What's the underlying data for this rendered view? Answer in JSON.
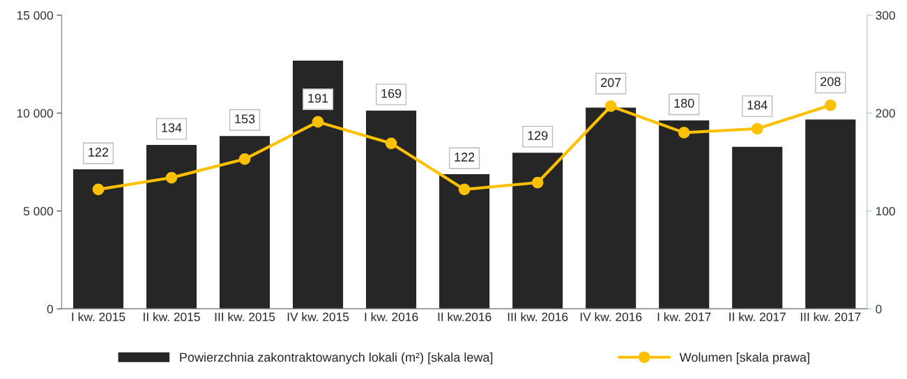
{
  "chart_data": {
    "type": "bar",
    "categories": [
      "I kw. 2015",
      "II kw. 2015",
      "III kw. 2015",
      "IV kw. 2015",
      "I kw. 2016",
      "II kw.2016",
      "III kw. 2016",
      "IV kw. 2016",
      "I kw. 2017",
      "II kw. 2017",
      "III kw. 2017"
    ],
    "series": [
      {
        "name": "Powierzchnia zakontraktowanych lokali (m²) [skala lewa]",
        "color": "#262626",
        "values": [
          7150,
          8400,
          8850,
          12700,
          10150,
          6900,
          8000,
          10300,
          9650,
          8300,
          9700
        ]
      },
      {
        "name": "Wolumen [skala prawa]",
        "type": "line",
        "axis": "y2",
        "color": "#ffc000",
        "marker": "circle",
        "data_labels": true,
        "values": [
          122,
          134,
          153,
          191,
          169,
          122,
          129,
          207,
          180,
          184,
          208
        ]
      }
    ],
    "ylim": [
      0,
      15000
    ],
    "yticks": [
      {
        "value": 0,
        "label": "0"
      },
      {
        "value": 5000,
        "label": "5 000"
      },
      {
        "value": 10000,
        "label": "10 000"
      },
      {
        "value": 15000,
        "label": "15 000"
      }
    ],
    "y2lim": [
      0,
      300
    ],
    "y2ticks": [
      0,
      100,
      200,
      300
    ],
    "grid": false,
    "legend": "bottom"
  }
}
